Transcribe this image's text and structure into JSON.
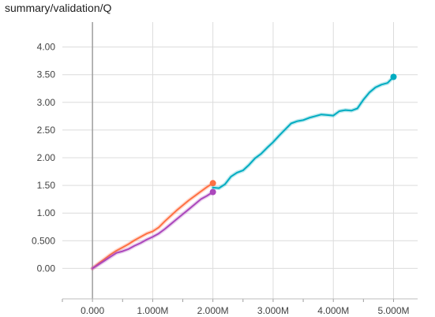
{
  "title": "summary/validation/Q",
  "chart_data": {
    "type": "line",
    "title": "summary/validation/Q",
    "xlabel": "",
    "ylabel": "",
    "xlim": [
      -500000,
      5400000
    ],
    "ylim": [
      -0.55,
      4.45
    ],
    "grid": true,
    "legend": "none",
    "x_ticks": [
      0,
      1000000,
      2000000,
      3000000,
      4000000,
      5000000
    ],
    "x_tick_labels": [
      "0.000",
      "1.000M",
      "2.000M",
      "3.000M",
      "4.000M",
      "5.000M"
    ],
    "y_ticks": [
      0,
      0.5,
      1.0,
      1.5,
      2.0,
      2.5,
      3.0,
      3.5,
      4.0
    ],
    "y_tick_labels": [
      "0.00",
      "0.500",
      "1.00",
      "1.50",
      "2.00",
      "2.50",
      "3.00",
      "3.50",
      "4.00"
    ],
    "series": [
      {
        "color": "#ff7043",
        "x": [
          0,
          100000,
          200000,
          300000,
          400000,
          500000,
          600000,
          700000,
          800000,
          900000,
          1000000,
          1100000,
          1200000,
          1300000,
          1400000,
          1500000,
          1600000,
          1700000,
          1800000,
          1900000,
          2000000
        ],
        "y": [
          0.0,
          0.09,
          0.17,
          0.25,
          0.32,
          0.38,
          0.44,
          0.51,
          0.57,
          0.63,
          0.67,
          0.74,
          0.85,
          0.95,
          1.05,
          1.14,
          1.23,
          1.31,
          1.39,
          1.47,
          1.54
        ]
      },
      {
        "color": "#ab47bc",
        "x": [
          0,
          100000,
          200000,
          300000,
          400000,
          500000,
          600000,
          700000,
          800000,
          900000,
          1000000,
          1100000,
          1200000,
          1300000,
          1400000,
          1500000,
          1600000,
          1700000,
          1800000,
          1900000,
          2000000
        ],
        "y": [
          0.0,
          0.07,
          0.14,
          0.21,
          0.28,
          0.31,
          0.35,
          0.41,
          0.46,
          0.52,
          0.57,
          0.63,
          0.71,
          0.8,
          0.89,
          0.98,
          1.07,
          1.16,
          1.25,
          1.31,
          1.38
        ]
      },
      {
        "color": "#00acc1",
        "x": [
          2000000,
          2100000,
          2200000,
          2300000,
          2400000,
          2500000,
          2600000,
          2700000,
          2800000,
          2900000,
          3000000,
          3100000,
          3200000,
          3300000,
          3400000,
          3500000,
          3600000,
          3700000,
          3800000,
          3900000,
          4000000,
          4100000,
          4200000,
          4300000,
          4400000,
          4500000,
          4600000,
          4700000,
          4800000,
          4900000,
          5000000
        ],
        "y": [
          1.46,
          1.45,
          1.52,
          1.66,
          1.73,
          1.77,
          1.87,
          1.99,
          2.07,
          2.18,
          2.28,
          2.4,
          2.51,
          2.62,
          2.66,
          2.68,
          2.72,
          2.75,
          2.78,
          2.77,
          2.76,
          2.84,
          2.86,
          2.85,
          2.89,
          3.05,
          3.18,
          3.27,
          3.32,
          3.35,
          3.46
        ]
      }
    ]
  }
}
